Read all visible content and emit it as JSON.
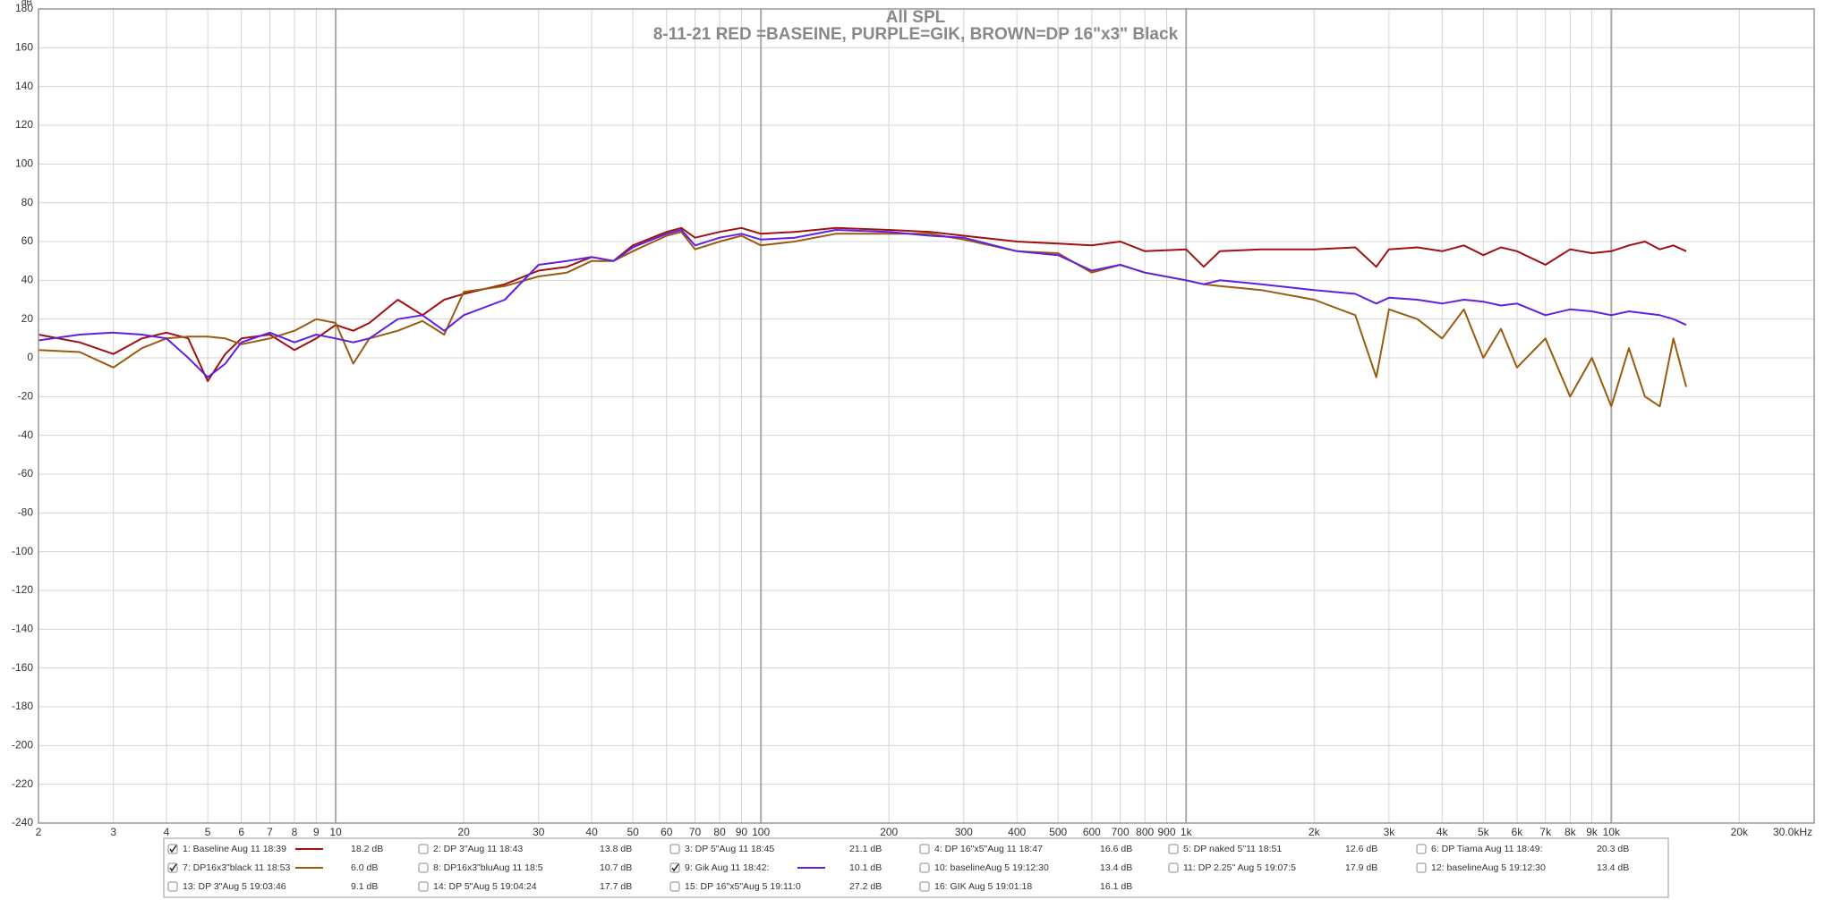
{
  "chart_data": {
    "type": "line",
    "x_scale": "log",
    "grid": true,
    "title": "All SPL",
    "subtitle": "8-11-21 RED =BASEINE, PURPLE=GIK,  BROWN=DP 16\"x3\" Black",
    "y_label": "dB",
    "xlim": [
      2,
      30000
    ],
    "ylim": [
      -240,
      180
    ],
    "xticks": [
      2,
      3,
      4,
      5,
      6,
      7,
      8,
      9,
      10,
      20,
      30,
      40,
      50,
      60,
      70,
      80,
      90,
      100,
      200,
      300,
      400,
      500,
      600,
      700,
      800,
      900,
      {
        "value": 1000,
        "label": "1k"
      },
      {
        "value": 2000,
        "label": "2k"
      },
      {
        "value": 3000,
        "label": "3k"
      },
      {
        "value": 4000,
        "label": "4k"
      },
      {
        "value": 5000,
        "label": "5k"
      },
      {
        "value": 6000,
        "label": "6k"
      },
      {
        "value": 7000,
        "label": "7k"
      },
      {
        "value": 8000,
        "label": "8k"
      },
      {
        "value": 9000,
        "label": "9k"
      },
      {
        "value": 10000,
        "label": "10k"
      },
      {
        "value": 20000,
        "label": "20k"
      },
      {
        "value": 30000,
        "label": "30.0kHz"
      }
    ],
    "yticks": [
      -240,
      -220,
      -200,
      -180,
      -160,
      -140,
      -120,
      -100,
      -80,
      -60,
      -40,
      -20,
      0,
      20,
      40,
      60,
      80,
      100,
      120,
      140,
      160,
      180
    ],
    "x": [
      2,
      2.5,
      3,
      3.5,
      4,
      4.5,
      5,
      5.5,
      6,
      7,
      8,
      9,
      10,
      11,
      12,
      14,
      16,
      18,
      20,
      25,
      30,
      35,
      40,
      45,
      50,
      60,
      65,
      70,
      80,
      90,
      100,
      120,
      150,
      200,
      250,
      300,
      400,
      500,
      600,
      700,
      800,
      1000,
      1100,
      1200,
      1500,
      2000,
      2500,
      2800,
      3000,
      3500,
      4000,
      4500,
      5000,
      5500,
      6000,
      7000,
      8000,
      9000,
      10000,
      11000,
      12000,
      13000,
      14000,
      15000
    ],
    "series": [
      {
        "color": "#a01010",
        "values": [
          12,
          8,
          2,
          10,
          13,
          10,
          -12,
          2,
          10,
          12,
          4,
          10,
          17,
          14,
          18,
          30,
          22,
          30,
          33,
          38,
          45,
          47,
          52,
          50,
          58,
          65,
          67,
          62,
          65,
          67,
          64,
          65,
          67,
          66,
          65,
          63,
          60,
          59,
          58,
          60,
          55,
          56,
          47,
          55,
          56,
          56,
          57,
          47,
          56,
          57,
          55,
          58,
          53,
          57,
          55,
          48,
          56,
          54,
          55,
          58,
          60,
          56,
          58,
          55
        ]
      },
      {
        "color": "#9a5a10",
        "values": [
          4,
          3,
          -5,
          5,
          10,
          11,
          11,
          10,
          7,
          10,
          14,
          20,
          18,
          -3,
          10,
          14,
          19,
          12,
          34,
          37,
          42,
          44,
          50,
          50,
          55,
          63,
          65,
          56,
          60,
          63,
          58,
          60,
          64,
          64,
          64,
          61,
          55,
          54,
          44,
          48,
          44,
          40,
          38,
          37,
          35,
          30,
          22,
          -10,
          25,
          20,
          10,
          25,
          0,
          15,
          -5,
          10,
          -20,
          0,
          -25,
          5,
          -20,
          -25,
          10,
          -15
        ]
      },
      {
        "color": "#6020e0",
        "values": [
          9,
          12,
          13,
          12,
          10,
          0,
          -10,
          -3,
          8,
          13,
          8,
          12,
          10,
          8,
          10,
          20,
          22,
          14,
          22,
          30,
          48,
          50,
          52,
          50,
          57,
          64,
          66,
          58,
          62,
          64,
          61,
          62,
          66,
          65,
          63,
          62,
          55,
          53,
          45,
          48,
          44,
          40,
          38,
          40,
          38,
          35,
          33,
          28,
          31,
          30,
          28,
          30,
          29,
          27,
          28,
          22,
          25,
          24,
          22,
          24,
          23,
          22,
          20,
          17
        ]
      }
    ],
    "legend": [
      {
        "name": "1: Baseline Aug 11 18:39",
        "color": "#a01010",
        "checked": true,
        "value": 18.2,
        "value_label": "18.2 dB"
      },
      {
        "name": "2: DP 3\"Aug 11 18:43",
        "color": "#1a7070",
        "checked": false,
        "value": 13.8,
        "value_label": "13.8 dB"
      },
      {
        "name": "3: DP 5\"Aug 11 18:45",
        "color": "#6020e0",
        "checked": false,
        "value": 21.1,
        "value_label": "21.1 dB"
      },
      {
        "name": "4: DP 16\"x5\"Aug 11 18:47",
        "color": "#d07010",
        "checked": false,
        "value": 16.6,
        "value_label": "16.6 dB"
      },
      {
        "name": "5: DP naked 5\"11 18:51",
        "color": "#20a020",
        "checked": false,
        "value": 12.6,
        "value_label": "12.6 dB"
      },
      {
        "name": "6: DP Tiama Aug 11 18:49:",
        "color": "#2060b0",
        "checked": false,
        "value": 20.3,
        "value_label": "20.3 dB"
      },
      {
        "name": "7: DP16x3\"black 11 18:53",
        "color": "#9a5a10",
        "checked": true,
        "value": 6,
        "value_label": "6.0 dB"
      },
      {
        "name": "8: DP16x3\"bluAug 11 18:5",
        "color": "#1a7070",
        "checked": false,
        "value": 10.7,
        "value_label": "10.7 dB"
      },
      {
        "name": "9: Gik Aug 11 18:42:",
        "color": "#6020e0",
        "checked": true,
        "value": 10.1,
        "value_label": "10.1 dB"
      },
      {
        "name": "10: baselineAug 5 19:12:30",
        "color": "#8030c0",
        "checked": false,
        "value": 13.4,
        "value_label": "13.4 dB"
      },
      {
        "name": "11: DP 2.25\" Aug 5 19:07:5",
        "color": "#a01010",
        "checked": false,
        "value": 17.9,
        "value_label": "17.9 dB"
      },
      {
        "name": "12: baselineAug 5 19:12:30",
        "color": "#206050",
        "checked": false,
        "value": 13.4,
        "value_label": "13.4 dB"
      },
      {
        "name": "13: DP 3\"Aug 5 19:03:46",
        "color": "#5030c0",
        "checked": false,
        "value": 9.1,
        "value_label": "9.1 dB"
      },
      {
        "name": "14: DP 5\"Aug 5 19:04:24",
        "color": "#e08020",
        "checked": false,
        "value": 17.7,
        "value_label": "17.7 dB"
      },
      {
        "name": "15: DP 16\"x5\"Aug 5 19:11:0",
        "color": "#30a030",
        "checked": false,
        "value": 27.2,
        "value_label": "27.2 dB"
      },
      {
        "name": "16: GIK Aug 5 19:01:18",
        "color": "#2060b0",
        "checked": false,
        "value": 16.1,
        "value_label": "16.1 dB"
      }
    ]
  }
}
